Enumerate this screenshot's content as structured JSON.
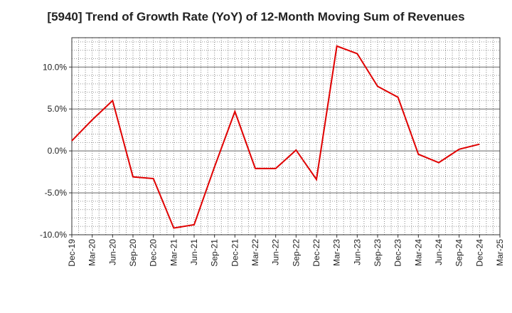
{
  "chart_data": {
    "type": "line",
    "title": "[5940]  Trend of Growth Rate (YoY) of 12-Month Moving Sum of Revenues",
    "xlabel": "",
    "ylabel": "",
    "x_ticks": [
      "Dec-19",
      "Mar-20",
      "Jun-20",
      "Sep-20",
      "Dec-20",
      "Mar-21",
      "Jun-21",
      "Sep-21",
      "Dec-21",
      "Mar-22",
      "Jun-22",
      "Sep-22",
      "Dec-22",
      "Mar-23",
      "Jun-23",
      "Sep-23",
      "Dec-23",
      "Mar-24",
      "Jun-24",
      "Sep-24",
      "Dec-24",
      "Mar-25"
    ],
    "y_ticks": [
      "10.0%",
      "5.0%",
      "0.0%",
      "-5.0%",
      "-10.0%"
    ],
    "y_tick_values": [
      10,
      5,
      0,
      -5,
      -10
    ],
    "ylim": [
      -10,
      13.5
    ],
    "grid": true,
    "series": [
      {
        "color": "#e00000",
        "x": [
          "Dec-19",
          "Mar-20",
          "Jun-20",
          "Sep-20",
          "Dec-20",
          "Mar-21",
          "Jun-21",
          "Sep-21",
          "Dec-21",
          "Mar-22",
          "Jun-22",
          "Sep-22",
          "Dec-22",
          "Mar-23",
          "Jun-23",
          "Sep-23",
          "Dec-23",
          "Mar-24",
          "Jun-24",
          "Sep-24",
          "Dec-24"
        ],
        "values": [
          1.2,
          3.7,
          6.0,
          -3.1,
          -3.3,
          -9.2,
          -8.8,
          -1.9,
          4.7,
          -2.1,
          -2.1,
          0.1,
          -3.4,
          12.5,
          11.6,
          7.7,
          6.4,
          -0.4,
          -1.4,
          0.2,
          0.8
        ]
      }
    ]
  }
}
